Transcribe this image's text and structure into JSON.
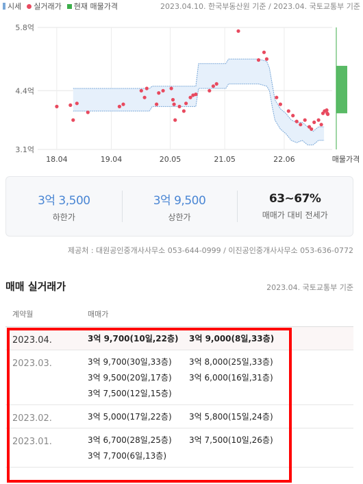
{
  "legend": {
    "items": [
      {
        "label": "시세",
        "swatch": "line"
      },
      {
        "label": "실거래가",
        "swatch": "dot"
      },
      {
        "label": "현재 매물가격",
        "swatch": "square"
      }
    ],
    "source": "2023.04.10. 한국부동산원 기준 / 2023.04. 국토교통부 기준"
  },
  "chart_data": {
    "type": "scatter",
    "y_tick_labels": [
      "5.8억",
      "4.4억",
      "3.1억"
    ],
    "y_ticks": [
      5.8,
      4.4,
      3.1
    ],
    "ylim": [
      3.1,
      5.8
    ],
    "x_tick_labels": [
      "18.04",
      "19.04",
      "20.05",
      "21.05",
      "22.06",
      "매물가격"
    ],
    "x_ticks": [
      2018.25,
      2019.25,
      2020.33,
      2021.33,
      2022.42
    ],
    "xlim": [
      2017.9,
      2023.3
    ],
    "grid": true,
    "colors": {
      "band": "#7aa8d8",
      "band_fill": "#e6f0fb",
      "deal": "#e84a5f",
      "listing": "#3cae4a"
    },
    "price_band": {
      "x": [
        2018.55,
        2019.95,
        2020.0,
        2020.8,
        2020.85,
        2021.35,
        2021.4,
        2021.95,
        2022.1,
        2022.15,
        2022.2,
        2022.25,
        2022.35,
        2022.45,
        2022.55,
        2022.65,
        2022.75,
        2022.85,
        2022.95,
        2023.05,
        2023.15
      ],
      "upper": [
        4.45,
        4.45,
        4.5,
        4.5,
        5.0,
        5.0,
        5.1,
        5.1,
        5.05,
        4.9,
        4.55,
        4.2,
        4.0,
        3.9,
        3.75,
        3.7,
        3.7,
        3.6,
        3.5,
        3.6,
        3.6
      ],
      "lower": [
        3.95,
        3.95,
        4.05,
        4.05,
        4.45,
        4.45,
        4.55,
        4.55,
        4.5,
        4.4,
        4.05,
        3.75,
        3.55,
        3.45,
        3.3,
        3.25,
        3.3,
        3.2,
        3.2,
        3.3,
        3.3
      ]
    },
    "deals": [
      [
        2018.25,
        4.05
      ],
      [
        2018.5,
        4.08
      ],
      [
        2018.55,
        3.75
      ],
      [
        2018.62,
        4.12
      ],
      [
        2018.82,
        3.92
      ],
      [
        2019.4,
        4.05
      ],
      [
        2019.47,
        4.1
      ],
      [
        2019.8,
        4.4
      ],
      [
        2019.86,
        4.25
      ],
      [
        2019.9,
        4.45
      ],
      [
        2020.08,
        4.1
      ],
      [
        2020.12,
        4.35
      ],
      [
        2020.2,
        4.4
      ],
      [
        2020.35,
        4.45
      ],
      [
        2020.38,
        4.2
      ],
      [
        2020.4,
        4.1
      ],
      [
        2020.42,
        3.75
      ],
      [
        2020.5,
        4.05
      ],
      [
        2020.58,
        3.95
      ],
      [
        2020.62,
        4.12
      ],
      [
        2020.7,
        4.25
      ],
      [
        2020.75,
        4.3
      ],
      [
        2020.8,
        4.32
      ],
      [
        2021.05,
        4.4
      ],
      [
        2021.12,
        4.5
      ],
      [
        2021.18,
        4.55
      ],
      [
        2021.58,
        5.72
      ],
      [
        2021.95,
        5.08
      ],
      [
        2022.05,
        5.25
      ],
      [
        2022.1,
        5.1
      ],
      [
        2022.28,
        4.25
      ],
      [
        2022.35,
        4.1
      ],
      [
        2022.5,
        3.95
      ],
      [
        2022.58,
        3.85
      ],
      [
        2022.65,
        3.72
      ],
      [
        2022.72,
        3.65
      ],
      [
        2022.8,
        3.75
      ],
      [
        2022.88,
        3.6
      ],
      [
        2022.92,
        3.55
      ],
      [
        2022.97,
        3.7
      ],
      [
        2023.05,
        3.75
      ],
      [
        2023.1,
        3.65
      ],
      [
        2023.13,
        3.9
      ],
      [
        2023.16,
        3.95
      ],
      [
        2023.2,
        3.97
      ],
      [
        2023.21,
        3.9
      ],
      [
        2023.22,
        3.88
      ]
    ],
    "listing_range": [
      3.9,
      4.95
    ]
  },
  "summary": {
    "low_value": "3억 3,500",
    "low_label": "하한가",
    "high_value": "3억 9,500",
    "high_label": "상한가",
    "ratio_value": "63~67%",
    "ratio_label": "매매가 대비 전세가"
  },
  "provider": "제공처 : 대원공인중개사사무소 053-644-0999 / 이진공인중개사사무소 053-636-0772",
  "section": {
    "title": "매매 실거래가",
    "source": "2023.04. 국토교통부 기준",
    "col_month": "계약월",
    "col_price": "매매가"
  },
  "rows": [
    {
      "month": "2023.04.",
      "values": [
        "3억 9,700(10일,22층)",
        "3억 9,000(8일,33층)"
      ]
    },
    {
      "month": "2023.03.",
      "values": [
        "3억 9,700(30일,33층)",
        "3억 8,000(25일,33층)",
        "3억 9,500(20일,17층)",
        "3억 6,000(16일,31층)",
        "3억 7,500(12일,15층)"
      ]
    },
    {
      "month": "2023.02.",
      "values": [
        "3억 5,000(17일,22층)",
        "3억 5,800(15일,24층)"
      ]
    },
    {
      "month": "2023.01.",
      "values": [
        "3억 6,700(28일,25층)",
        "3억 7,500(10일,26층)",
        "3억 7,700(6일,13층)"
      ]
    }
  ]
}
